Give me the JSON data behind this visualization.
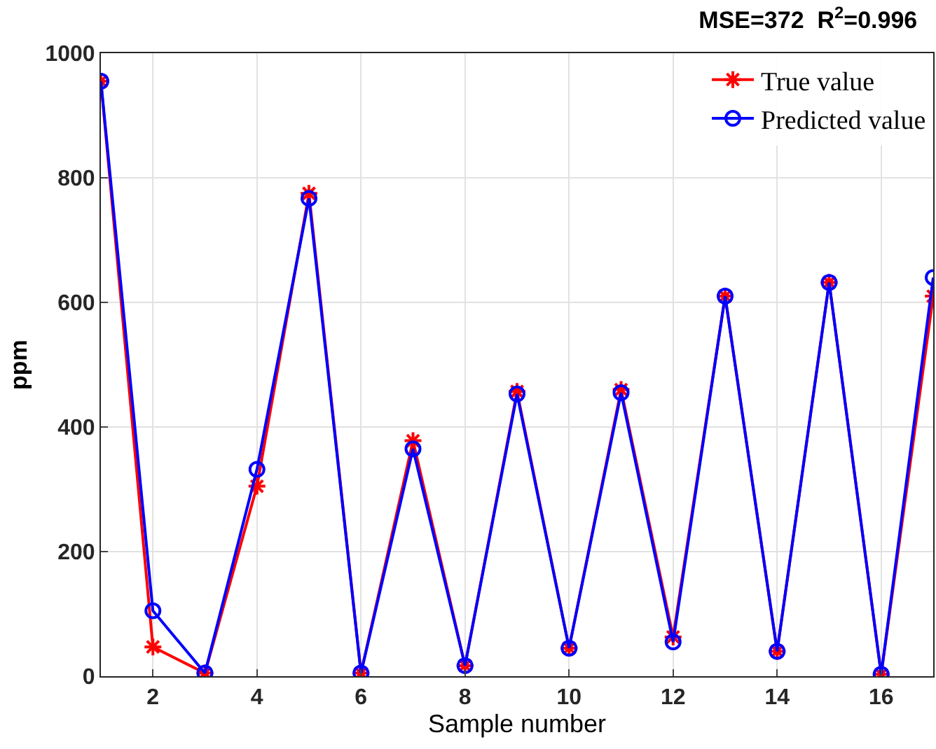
{
  "chart_data": {
    "type": "line",
    "title": "MSE=372  R$^{2}$=0.996",
    "xlabel": "Sample number",
    "ylabel": "ppm",
    "x": [
      1,
      2,
      3,
      4,
      5,
      6,
      7,
      8,
      9,
      10,
      11,
      12,
      13,
      14,
      15,
      16,
      17
    ],
    "series": [
      {
        "name": "True value",
        "color": "#ff0000",
        "marker": "cross",
        "values": [
          955,
          47,
          5,
          305,
          775,
          5,
          378,
          17,
          457,
          45,
          460,
          63,
          610,
          40,
          632,
          3,
          610
        ]
      },
      {
        "name": "Predicted value",
        "color": "#0000ff",
        "marker": "circle",
        "values": [
          955,
          105,
          5,
          332,
          767,
          5,
          365,
          17,
          453,
          45,
          455,
          55,
          610,
          40,
          632,
          3,
          640
        ]
      }
    ],
    "xlim": [
      1,
      17
    ],
    "xticks": [
      2,
      4,
      6,
      8,
      10,
      12,
      14,
      16
    ],
    "ylim": [
      0,
      1000
    ],
    "yticks": [
      0,
      200,
      400,
      600,
      800,
      1000
    ],
    "grid": true,
    "legend": "top right",
    "line_style": "solid"
  }
}
